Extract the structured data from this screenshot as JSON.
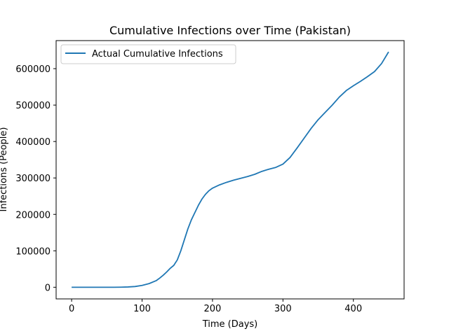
{
  "chart_data": {
    "type": "line",
    "title": "Cumulative Infections over Time (Pakistan)",
    "xlabel": "Time (Days)",
    "ylabel": "Infections (People)",
    "xlim": [
      -22,
      472
    ],
    "ylim": [
      -32000,
      677000
    ],
    "xticks": [
      0,
      100,
      200,
      300,
      400
    ],
    "yticks": [
      0,
      100000,
      200000,
      300000,
      400000,
      500000,
      600000
    ],
    "grid": false,
    "legend_position": "upper-left",
    "series": [
      {
        "name": "Actual Cumulative Infections",
        "color": "#1f77b4",
        "x": [
          0,
          20,
          40,
          60,
          70,
          80,
          90,
          100,
          110,
          120,
          125,
          130,
          135,
          140,
          145,
          150,
          155,
          160,
          165,
          170,
          175,
          180,
          185,
          190,
          195,
          200,
          210,
          220,
          230,
          240,
          250,
          260,
          270,
          280,
          290,
          300,
          310,
          320,
          330,
          340,
          350,
          360,
          370,
          380,
          390,
          400,
          410,
          420,
          430,
          440,
          450
        ],
        "values": [
          0,
          0,
          0,
          0,
          200,
          800,
          2000,
          5000,
          10000,
          18000,
          25000,
          33000,
          42000,
          52000,
          60000,
          75000,
          100000,
          130000,
          160000,
          185000,
          205000,
          225000,
          242000,
          255000,
          265000,
          272000,
          281000,
          288000,
          294000,
          299000,
          304000,
          310000,
          318000,
          324000,
          329000,
          338000,
          356000,
          382000,
          409000,
          436000,
          460000,
          480000,
          500000,
          522000,
          540000,
          553000,
          565000,
          578000,
          592000,
          614000,
          646000
        ]
      }
    ]
  }
}
